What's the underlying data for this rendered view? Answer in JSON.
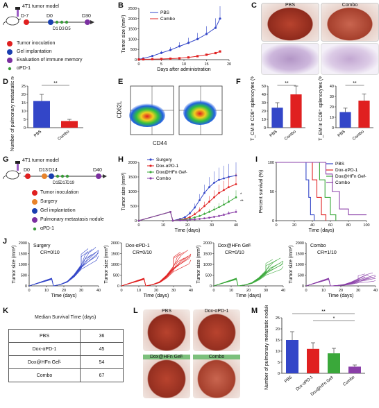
{
  "panels": {
    "A": {
      "label": "A",
      "title": "4T1 tumor model",
      "timeline": [
        "D-7",
        "D0",
        "D1",
        "D3",
        "D5",
        "D30"
      ],
      "legend": [
        {
          "text": "Tumor inoculation",
          "color": "#e02020",
          "kind": "big"
        },
        {
          "text": "Gel implantation",
          "color": "#1a3fb0",
          "kind": "big"
        },
        {
          "text": "Evaluation of immune memory",
          "color": "#7b2fa0",
          "kind": "big"
        },
        {
          "text": "αPD-1",
          "color": "#3a9a3a",
          "kind": "small"
        }
      ]
    },
    "B": {
      "label": "B",
      "ylabel": "Tumor size (mm³)",
      "xlabel": "Days after administration",
      "series": [
        {
          "name": "PBS",
          "color": "#3346c8"
        },
        {
          "name": "Combo",
          "color": "#e02020"
        }
      ]
    },
    "C": {
      "label": "C",
      "cols": [
        "PBS",
        "Combo"
      ]
    },
    "D": {
      "label": "D",
      "ylabel": "Number of pulmonary metastatic nodules",
      "sig": "**"
    },
    "E": {
      "label": "E",
      "xlabel": "CD44",
      "ylabel": "CD62L"
    },
    "F": {
      "label": "F",
      "ylabel1": "T_CM in CD8⁺ splenocytes (%)",
      "ylabel2": "T_EM in CD8⁺ splenocytes (%)",
      "sig": "**"
    },
    "G": {
      "label": "G",
      "title": "4T1 tumor model",
      "timeline": [
        "D0",
        "D13",
        "D14",
        "D15",
        "D17",
        "D19",
        "D40"
      ],
      "legend": [
        {
          "text": "Tumor inoculation",
          "color": "#e02020",
          "kind": "big"
        },
        {
          "text": "Surgery",
          "color": "#e8832a",
          "kind": "big"
        },
        {
          "text": "Gel implantation",
          "color": "#1a3fb0",
          "kind": "big"
        },
        {
          "text": "Pulmonary metastasis nodule",
          "color": "#7b2fa0",
          "kind": "big"
        },
        {
          "text": "αPD-1",
          "color": "#3a9a3a",
          "kind": "small"
        }
      ]
    },
    "H": {
      "label": "H",
      "ylabel": "Tumor size (mm³)",
      "xlabel": "Time (days)",
      "series": [
        {
          "name": "Surgery",
          "color": "#3346c8"
        },
        {
          "name": "Dox-αPD-1",
          "color": "#e02020"
        },
        {
          "name": "Dox@HFn Gelᴸ",
          "color": "#3aa83a"
        },
        {
          "name": "Combo",
          "color": "#8a3fa8"
        }
      ],
      "sig": [
        "*",
        "**"
      ]
    },
    "I": {
      "label": "I",
      "ylabel": "Percent survival (%)",
      "xlabel": "Time (days)",
      "series": [
        {
          "name": "PBS",
          "color": "#3346c8"
        },
        {
          "name": "Dox-αPD-1",
          "color": "#e02020"
        },
        {
          "name": "Dox@HFn Gelᴸ",
          "color": "#3aa83a"
        },
        {
          "name": "Combo",
          "color": "#8a3fa8"
        }
      ]
    },
    "J": {
      "label": "J",
      "ylabel": "Tumor size (mm³)",
      "xlabel": "Time (days)",
      "groups": [
        {
          "name": "Surgery",
          "cr": "CR=0/10",
          "color": "#3346c8"
        },
        {
          "name": "Dox-αPD-1",
          "cr": "CR=0/10",
          "color": "#e02020"
        },
        {
          "name": "Dox@HFn Gelᴸ",
          "cr": "CR=0/10",
          "color": "#3aa83a"
        },
        {
          "name": "Combo",
          "cr": "CR=1/10",
          "color": "#8a3fa8"
        }
      ]
    },
    "K": {
      "label": "K",
      "title": "Median Survival Time (days)",
      "rows": [
        {
          "name": "PBS",
          "value": "36"
        },
        {
          "name": "Dox-αPD-1",
          "value": "45"
        },
        {
          "name": "Dox@HFn Gelᴸ",
          "value": "54"
        },
        {
          "name": "Combo",
          "value": "67"
        }
      ]
    },
    "L": {
      "label": "L",
      "labels": [
        "PBS",
        "Dox-αPD-1",
        "Dox@HFn Gelᴸ",
        "Combo"
      ]
    },
    "M": {
      "label": "M",
      "ylabel": "Number of pulmonary metastatic nodules",
      "sig": [
        "**",
        "*"
      ]
    }
  },
  "chart_data": [
    {
      "type": "line",
      "panel": "B",
      "title": "",
      "xlabel": "Days after administration",
      "ylabel": "Tumor size (mm³)",
      "xlim": [
        0,
        20
      ],
      "ylim": [
        0,
        2500
      ],
      "xticks": [
        0,
        5,
        10,
        15,
        20
      ],
      "yticks": [
        0,
        500,
        1000,
        1500,
        2000,
        2500
      ],
      "x": [
        0,
        1,
        3,
        5,
        7,
        9,
        11,
        13,
        15,
        17,
        18
      ],
      "series": [
        {
          "name": "PBS",
          "values": [
            20,
            60,
            180,
            330,
            470,
            650,
            820,
            1000,
            1250,
            1550,
            2000
          ]
        },
        {
          "name": "Combo",
          "values": [
            10,
            15,
            25,
            35,
            50,
            70,
            110,
            170,
            240,
            320,
            400
          ]
        }
      ]
    },
    {
      "type": "bar",
      "panel": "D",
      "categories": [
        "PBS",
        "Combo"
      ],
      "values": [
        16,
        4
      ],
      "ylabel": "Number of pulmonary metastatic nodules",
      "ylim": [
        0,
        25
      ],
      "yticks": [
        0,
        5,
        10,
        15,
        20,
        25
      ]
    },
    {
      "type": "bar",
      "panel": "F-TCM",
      "categories": [
        "PBS",
        "Combo"
      ],
      "values": [
        24,
        40
      ],
      "ylabel": "T_CM in CD8⁺ splenocytes (%)",
      "ylim": [
        0,
        50
      ],
      "yticks": [
        0,
        10,
        20,
        30,
        40,
        50
      ]
    },
    {
      "type": "bar",
      "panel": "F-TEM",
      "categories": [
        "PBS",
        "Combo"
      ],
      "values": [
        15,
        26
      ],
      "ylabel": "T_EM in CD8⁺ splenocytes (%)",
      "ylim": [
        0,
        40
      ],
      "yticks": [
        0,
        10,
        20,
        30,
        40
      ]
    },
    {
      "type": "line",
      "panel": "H",
      "xlabel": "Time (days)",
      "ylabel": "Tumor size (mm³)",
      "xlim": [
        0,
        40
      ],
      "ylim": [
        0,
        2000
      ],
      "xticks": [
        0,
        10,
        20,
        30,
        40
      ],
      "yticks": [
        0,
        500,
        1000,
        1500,
        2000
      ],
      "x": [
        0,
        13,
        14,
        17,
        19,
        21,
        23,
        25,
        27,
        29,
        31,
        33,
        35,
        37,
        40
      ],
      "series": [
        {
          "name": "Surgery",
          "values": [
            0,
            300,
            0,
            60,
            120,
            250,
            450,
            700,
            950,
            1150,
            1300,
            1400,
            1450,
            1500,
            1550
          ]
        },
        {
          "name": "Dox-αPD-1",
          "values": [
            0,
            300,
            0,
            30,
            60,
            120,
            220,
            350,
            500,
            650,
            800,
            950,
            1050,
            1150,
            1250
          ]
        },
        {
          "name": "Dox@HFn Gelᴸ",
          "values": [
            0,
            300,
            0,
            20,
            40,
            70,
            110,
            160,
            230,
            300,
            380,
            460,
            550,
            650,
            800
          ]
        },
        {
          "name": "Combo",
          "values": [
            0,
            300,
            0,
            10,
            20,
            30,
            45,
            60,
            80,
            100,
            130,
            160,
            200,
            250,
            300
          ]
        }
      ]
    },
    {
      "type": "line",
      "panel": "I",
      "xlabel": "Time (days)",
      "ylabel": "Percent survival (%)",
      "xlim": [
        0,
        100
      ],
      "ylim": [
        0,
        100
      ],
      "xticks": [
        0,
        20,
        40,
        60,
        80,
        100
      ],
      "yticks": [
        0,
        50,
        100
      ],
      "series": [
        {
          "name": "PBS",
          "x": [
            0,
            33,
            33,
            36,
            36,
            38,
            38,
            42,
            42
          ],
          "values": [
            100,
            100,
            70,
            70,
            40,
            40,
            10,
            10,
            0
          ]
        },
        {
          "name": "Dox-αPD-1",
          "x": [
            0,
            40,
            40,
            45,
            45,
            50,
            50,
            55,
            55
          ],
          "values": [
            100,
            100,
            70,
            70,
            40,
            40,
            10,
            10,
            0
          ]
        },
        {
          "name": "Dox@HFn Gelᴸ",
          "x": [
            0,
            48,
            48,
            54,
            54,
            60,
            60,
            66,
            66
          ],
          "values": [
            100,
            100,
            70,
            70,
            40,
            40,
            10,
            10,
            0
          ]
        },
        {
          "name": "Combo",
          "x": [
            0,
            55,
            55,
            62,
            62,
            70,
            70,
            80,
            80,
            100
          ],
          "values": [
            100,
            100,
            80,
            80,
            50,
            50,
            20,
            20,
            10,
            10
          ]
        }
      ]
    },
    {
      "type": "bar",
      "panel": "M",
      "categories": [
        "PBS",
        "Dox-αPD-1",
        "Dox@HFn Gelᴸ",
        "Combo"
      ],
      "values": [
        15,
        11,
        9,
        3
      ],
      "ylabel": "Number of pulmonary metastatic nodules",
      "ylim": [
        0,
        25
      ],
      "yticks": [
        0,
        5,
        10,
        15,
        20,
        25
      ]
    }
  ]
}
